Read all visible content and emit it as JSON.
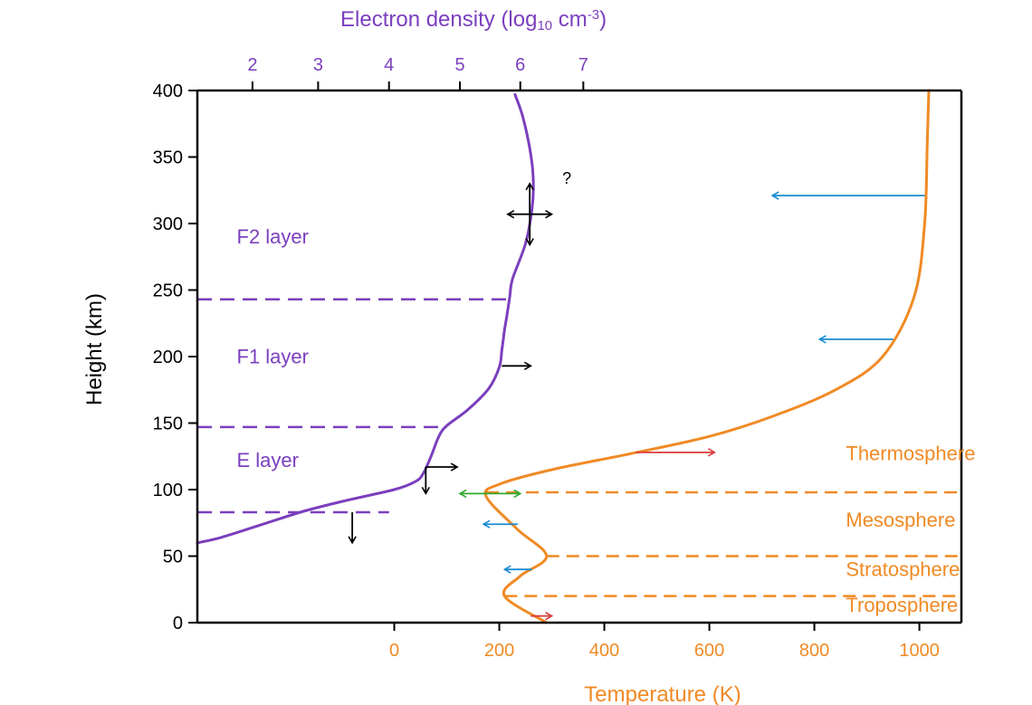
{
  "chart_data": {
    "type": "line",
    "axes": {
      "y": {
        "label": "Height (km)",
        "range": [
          0,
          400
        ],
        "ticks": [
          0,
          50,
          100,
          150,
          200,
          250,
          300,
          350,
          400
        ],
        "tick_labels": [
          "0",
          "50",
          "100",
          "150",
          "200",
          "250",
          "300",
          "350",
          "400"
        ]
      },
      "x_top": {
        "label_main": "Electron density (log",
        "label_sub": "10",
        "label_mid": " cm",
        "label_sup": "-3",
        "label_end": ")",
        "ticks": [
          2,
          3,
          4,
          5,
          6,
          7
        ],
        "tick_labels": [
          "2",
          "3",
          "4",
          "5",
          "6",
          "7"
        ],
        "tick_positions_temperature_K": [
          -270,
          -145,
          -10,
          125,
          240,
          360
        ]
      },
      "x_bottom": {
        "label": "Temperature (K)",
        "range": [
          -375,
          1080
        ],
        "ticks": [
          0,
          200,
          400,
          600,
          800,
          1000
        ],
        "tick_labels": [
          "0",
          "200",
          "400",
          "600",
          "800",
          "1000"
        ]
      }
    },
    "series": [
      {
        "name": "",
        "color": "#7b3fbe",
        "points_temperature_K_height_km": [
          [
            -375,
            60
          ],
          [
            -330,
            64
          ],
          [
            -250,
            74
          ],
          [
            -170,
            84
          ],
          [
            -90,
            92
          ],
          [
            0,
            100
          ],
          [
            40,
            106
          ],
          [
            55,
            112
          ],
          [
            70,
            125
          ],
          [
            85,
            140
          ],
          [
            100,
            148
          ],
          [
            140,
            160
          ],
          [
            180,
            176
          ],
          [
            200,
            192
          ],
          [
            205,
            205
          ],
          [
            210,
            220
          ],
          [
            215,
            232
          ],
          [
            220,
            245
          ],
          [
            225,
            258
          ],
          [
            250,
            285
          ],
          [
            262,
            310
          ],
          [
            265,
            330
          ],
          [
            260,
            352
          ],
          [
            245,
            380
          ],
          [
            230,
            397
          ]
        ]
      },
      {
        "name": "",
        "color": "#f08a24",
        "points_temperature_K_height_km": [
          [
            290,
            0
          ],
          [
            210,
            20
          ],
          [
            240,
            35
          ],
          [
            290,
            50
          ],
          [
            235,
            70
          ],
          [
            175,
            95
          ],
          [
            200,
            104
          ],
          [
            300,
            115
          ],
          [
            450,
            127
          ],
          [
            600,
            140
          ],
          [
            720,
            155
          ],
          [
            840,
            175
          ],
          [
            930,
            200
          ],
          [
            990,
            245
          ],
          [
            1010,
            300
          ],
          [
            1015,
            360
          ],
          [
            1018,
            400
          ]
        ]
      }
    ],
    "layer_labels": [
      {
        "text": "F2 layer",
        "temp": -300,
        "height": 285
      },
      {
        "text": "F1 layer",
        "temp": -300,
        "height": 195
      },
      {
        "text": "E layer",
        "temp": -300,
        "height": 117
      }
    ],
    "ionosphere_boundaries_km": [
      83,
      147,
      243
    ],
    "ionosphere_boundary_right_temps": [
      -10,
      100,
      220
    ],
    "atmosphere_labels": [
      {
        "text": "Thermosphere",
        "temp": 860,
        "height": 122
      },
      {
        "text": "Mesosphere",
        "temp": 860,
        "height": 72
      },
      {
        "text": "Stratosphere",
        "temp": 860,
        "height": 35
      },
      {
        "text": "Troposphere",
        "temp": 860,
        "height": 8
      }
    ],
    "atmosphere_boundaries_km": [
      20,
      50,
      98
    ],
    "atmosphere_boundary_left_temps": [
      210,
      290,
      175
    ],
    "question_mark": {
      "text": "?",
      "temp": 320,
      "height": 330
    },
    "arrows_purple_series": [
      {
        "from": [
          -80,
          83
        ],
        "to": [
          -80,
          60
        ],
        "color": "#000000"
      },
      {
        "from": [
          60,
          117
        ],
        "to": [
          120,
          117
        ],
        "color": "#000000"
      },
      {
        "from": [
          60,
          117
        ],
        "to": [
          60,
          97
        ],
        "color": "#000000"
      },
      {
        "from": [
          205,
          193
        ],
        "to": [
          260,
          193
        ],
        "color": "#000000"
      },
      {
        "from": [
          258,
          307
        ],
        "to": [
          300,
          307
        ],
        "color": "#000000"
      },
      {
        "from": [
          258,
          307
        ],
        "to": [
          216,
          307
        ],
        "color": "#000000"
      },
      {
        "from": [
          258,
          307
        ],
        "to": [
          258,
          330
        ],
        "color": "#000000"
      },
      {
        "from": [
          258,
          307
        ],
        "to": [
          258,
          284
        ],
        "color": "#000000"
      }
    ],
    "arrows_temperature": [
      {
        "from": [
          1010,
          321
        ],
        "to": [
          720,
          321
        ],
        "color": "#1a8bd1"
      },
      {
        "from": [
          950,
          213
        ],
        "to": [
          810,
          213
        ],
        "color": "#1a8bd1"
      },
      {
        "from": [
          460,
          128
        ],
        "to": [
          610,
          128
        ],
        "color": "#d83a3a"
      },
      {
        "from": [
          180,
          97
        ],
        "to": [
          240,
          97
        ],
        "color": "#2fa82f"
      },
      {
        "from": [
          180,
          97
        ],
        "to": [
          125,
          97
        ],
        "color": "#2fa82f"
      },
      {
        "from": [
          235,
          74
        ],
        "to": [
          170,
          74
        ],
        "color": "#1a8bd1"
      },
      {
        "from": [
          262,
          40
        ],
        "to": [
          210,
          40
        ],
        "color": "#1a8bd1"
      },
      {
        "from": [
          260,
          5
        ],
        "to": [
          300,
          5
        ],
        "color": "#d83a3a"
      }
    ],
    "grid": false,
    "legend": "none"
  }
}
